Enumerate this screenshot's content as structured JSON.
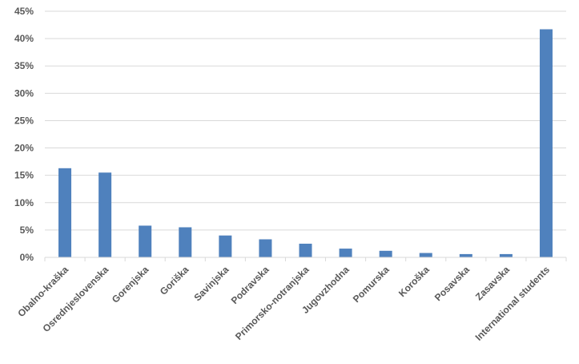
{
  "chart_data": {
    "type": "bar",
    "title": "",
    "xlabel": "",
    "ylabel": "",
    "ylim": [
      0,
      45
    ],
    "yticks": [
      0,
      5,
      10,
      15,
      20,
      25,
      30,
      35,
      40,
      45
    ],
    "ytick_labels": [
      "0%",
      "5%",
      "10%",
      "15%",
      "20%",
      "25%",
      "30%",
      "35%",
      "40%",
      "45%"
    ],
    "grid": true,
    "legend": "none",
    "bar_color": "#4F81BD",
    "categories": [
      "Obalno-kraška",
      "Osrednjeslovenska",
      "Gorenjska",
      "Goriška",
      "Savinjska",
      "Podravska",
      "Primorsko-notranjska",
      "Jugovzhodna",
      "Pomurska",
      "Koroška",
      "Posavska",
      "Zasavska",
      "International students"
    ],
    "values": [
      16.3,
      15.5,
      5.8,
      5.5,
      4.0,
      3.3,
      2.5,
      1.6,
      1.2,
      0.8,
      0.6,
      0.6,
      41.7
    ]
  }
}
